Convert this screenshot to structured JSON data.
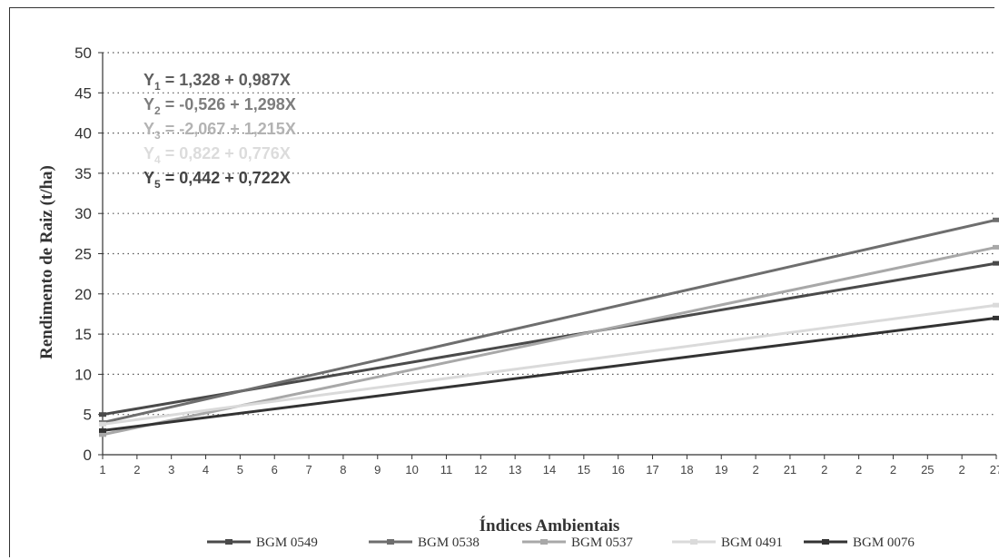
{
  "chart_data": {
    "type": "line",
    "xlabel": "Índices Ambientais",
    "ylabel": "Rendimento de Raiz (t/ha)",
    "ylim": [
      0,
      50
    ],
    "yticks": [
      0,
      5,
      10,
      15,
      20,
      25,
      30,
      35,
      40,
      45,
      50
    ],
    "xlim": [
      1,
      27
    ],
    "xtick_labels": [
      "1",
      "2",
      "3",
      "4",
      "5",
      "6",
      "7",
      "8",
      "9",
      "10",
      "11",
      "12",
      "13",
      "14",
      "15",
      "16",
      "17",
      "18",
      "19",
      "2",
      "21",
      "2",
      "2",
      "2",
      "25",
      "2",
      "27"
    ],
    "grid": "horizontal-dotted",
    "legend_position": "bottom",
    "equations": [
      {
        "label": "Y",
        "sub": "1",
        "text": " = 1,328 + 0,987X",
        "color": "#5e5e5e"
      },
      {
        "label": "Y",
        "sub": "2",
        "text": " = -0,526 + 1,298X",
        "color": "#7d7d7d"
      },
      {
        "label": "Y",
        "sub": "3",
        "text": " = -2,067 + 1,215X",
        "color": "#b3b3b3"
      },
      {
        "label": "Y",
        "sub": "4",
        "text": " = 0,822 + 0,776X",
        "color": "#dcdcdc"
      },
      {
        "label": "Y",
        "sub": "5",
        "text": " = 0,442 + 0,722X",
        "color": "#444444"
      }
    ],
    "series": [
      {
        "name": "BGM 0549",
        "color": "#4a4a4a",
        "x": [
          1,
          27
        ],
        "y": [
          5.0,
          23.8
        ]
      },
      {
        "name": "BGM 0538",
        "color": "#6e6e6e",
        "x": [
          1,
          27
        ],
        "y": [
          4.0,
          29.2
        ]
      },
      {
        "name": "BGM 0537",
        "color": "#a8a8a8",
        "x": [
          1,
          27
        ],
        "y": [
          2.5,
          25.8
        ]
      },
      {
        "name": "BGM 0491",
        "color": "#dadada",
        "x": [
          1,
          27
        ],
        "y": [
          3.8,
          18.6
        ]
      },
      {
        "name": "BGM 0076",
        "color": "#333333",
        "x": [
          1,
          27
        ],
        "y": [
          3.0,
          17.0
        ]
      }
    ]
  }
}
